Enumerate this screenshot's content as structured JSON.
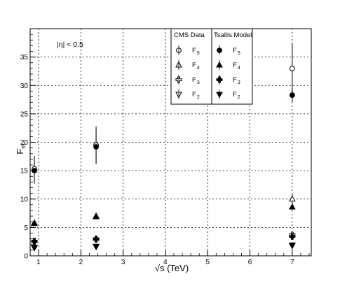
{
  "chart_data": {
    "type": "scatter",
    "title": "",
    "xlabel": "√s (TeV)",
    "ylabel": "F_m",
    "xlim": [
      0.8,
      7.45
    ],
    "ylim": [
      0,
      40
    ],
    "x_ticks": [
      1,
      2,
      3,
      4,
      5,
      6,
      7
    ],
    "y_ticks": [
      0,
      5,
      10,
      15,
      20,
      25,
      30,
      35
    ],
    "grid": true,
    "annotation": "|η| < 0.5",
    "legend_position": "top-center",
    "legend_groups": [
      {
        "title": "CMS  Data",
        "entries": [
          {
            "label": "F",
            "sub": "5",
            "marker": "open-circle"
          },
          {
            "label": "F",
            "sub": "4",
            "marker": "open-triangle-up"
          },
          {
            "label": "F",
            "sub": "3",
            "marker": "open-cross"
          },
          {
            "label": "F",
            "sub": "2",
            "marker": "open-triangle-down"
          }
        ]
      },
      {
        "title": "Tsallis Model",
        "entries": [
          {
            "label": "F",
            "sub": "5",
            "marker": "filled-circle"
          },
          {
            "label": "F",
            "sub": "4",
            "marker": "filled-triangle-up"
          },
          {
            "label": "F",
            "sub": "3",
            "marker": "filled-cross"
          },
          {
            "label": "F",
            "sub": "2",
            "marker": "filled-triangle-down"
          }
        ]
      }
    ],
    "series": [
      {
        "group": "CMS Data",
        "moment": "F5",
        "marker": "open-circle",
        "points": [
          {
            "x": 0.9,
            "y": 15.3,
            "err": 2.3
          },
          {
            "x": 2.36,
            "y": 19.5,
            "err": 3.3
          },
          {
            "x": 7.0,
            "y": 33.0,
            "err": 4.5
          }
        ]
      },
      {
        "group": "CMS Data",
        "moment": "F4",
        "marker": "open-triangle-up",
        "points": [
          {
            "x": 0.9,
            "y": 5.8,
            "err": 0.4
          },
          {
            "x": 2.36,
            "y": 7.0,
            "err": 0.6
          },
          {
            "x": 7.0,
            "y": 10.0,
            "err": 0.9
          }
        ]
      },
      {
        "group": "CMS Data",
        "moment": "F3",
        "marker": "open-cross",
        "points": [
          {
            "x": 0.9,
            "y": 2.6,
            "err": 0.2
          },
          {
            "x": 2.36,
            "y": 3.0,
            "err": 0.3
          },
          {
            "x": 7.0,
            "y": 3.7,
            "err": 0.4
          }
        ]
      },
      {
        "group": "CMS Data",
        "moment": "F2",
        "marker": "open-triangle-down",
        "points": [
          {
            "x": 0.9,
            "y": 1.5,
            "err": 0.1
          },
          {
            "x": 2.36,
            "y": 1.7,
            "err": 0.1
          },
          {
            "x": 7.0,
            "y": 1.9,
            "err": 0.1
          }
        ]
      },
      {
        "group": "Tsallis Model",
        "moment": "F5",
        "marker": "filled-circle",
        "points": [
          {
            "x": 0.9,
            "y": 15.0,
            "err": 2.3
          },
          {
            "x": 2.36,
            "y": 19.2,
            "err": 3.0
          },
          {
            "x": 7.0,
            "y": 28.3,
            "err": 1.2
          }
        ]
      },
      {
        "group": "Tsallis Model",
        "moment": "F4",
        "marker": "filled-triangle-up",
        "points": [
          {
            "x": 0.9,
            "y": 5.7,
            "err": 0.3
          },
          {
            "x": 2.36,
            "y": 6.9,
            "err": 0.4
          },
          {
            "x": 7.0,
            "y": 8.6,
            "err": 0.5
          }
        ]
      },
      {
        "group": "Tsallis Model",
        "moment": "F3",
        "marker": "filled-cross",
        "points": [
          {
            "x": 0.9,
            "y": 2.5,
            "err": 0.2
          },
          {
            "x": 2.36,
            "y": 2.9,
            "err": 0.3
          },
          {
            "x": 7.0,
            "y": 3.4,
            "err": 0.3
          }
        ]
      },
      {
        "group": "Tsallis Model",
        "moment": "F2",
        "marker": "filled-triangle-down",
        "points": [
          {
            "x": 0.9,
            "y": 1.4,
            "err": 0.1
          },
          {
            "x": 2.36,
            "y": 1.6,
            "err": 0.1
          },
          {
            "x": 7.0,
            "y": 1.8,
            "err": 0.1
          }
        ]
      }
    ]
  }
}
